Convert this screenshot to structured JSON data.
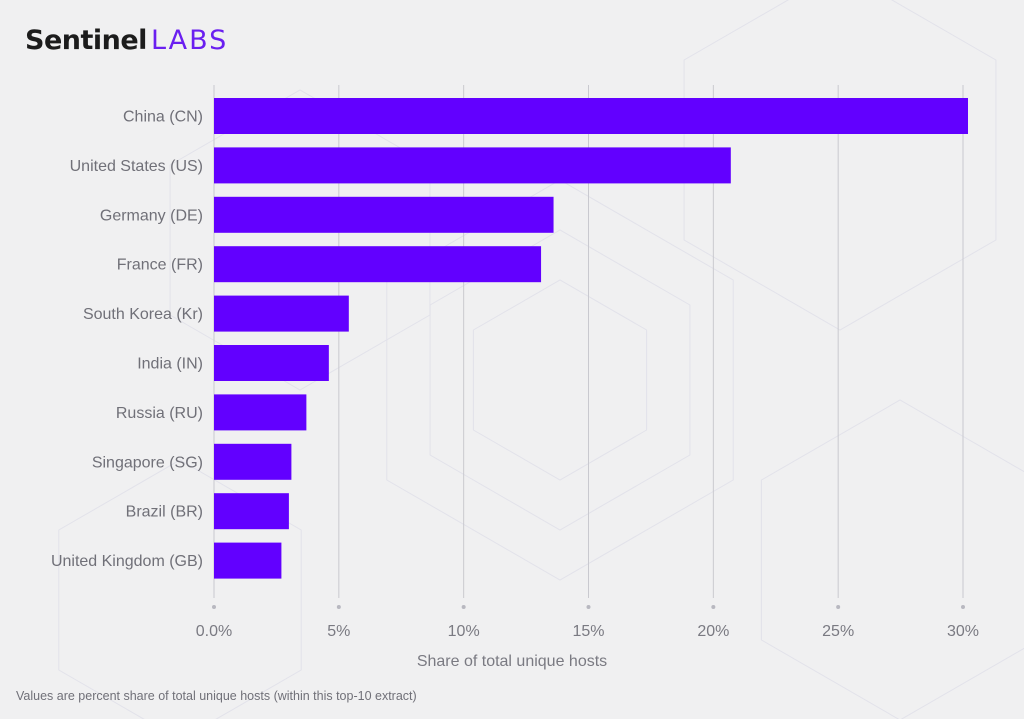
{
  "brand": {
    "part1": "Sentinel",
    "part2": "LABS"
  },
  "chart_data": {
    "type": "bar",
    "orientation": "horizontal",
    "categories": [
      "China (CN)",
      "United States (US)",
      "Germany (DE)",
      "France (FR)",
      "South Korea (Kr)",
      "India (IN)",
      "Russia (RU)",
      "Singapore (SG)",
      "Brazil (BR)",
      "United Kingdom (GB)"
    ],
    "values": [
      30.2,
      20.7,
      13.6,
      13.1,
      5.4,
      4.6,
      3.7,
      3.1,
      3.0,
      2.7
    ],
    "xlabel": "Share of total unique hosts",
    "ylabel": "",
    "xlim": [
      0,
      30
    ],
    "xticks": [
      0,
      5,
      10,
      15,
      20,
      25,
      30
    ],
    "xtick_labels": [
      "0.0%",
      "5%",
      "10%",
      "15%",
      "20%",
      "25%",
      "30%"
    ],
    "grid": "vertical",
    "bar_color": "#6200ff"
  },
  "footnote": "Values are percent share of total unique hosts (within this top-10 extract)"
}
